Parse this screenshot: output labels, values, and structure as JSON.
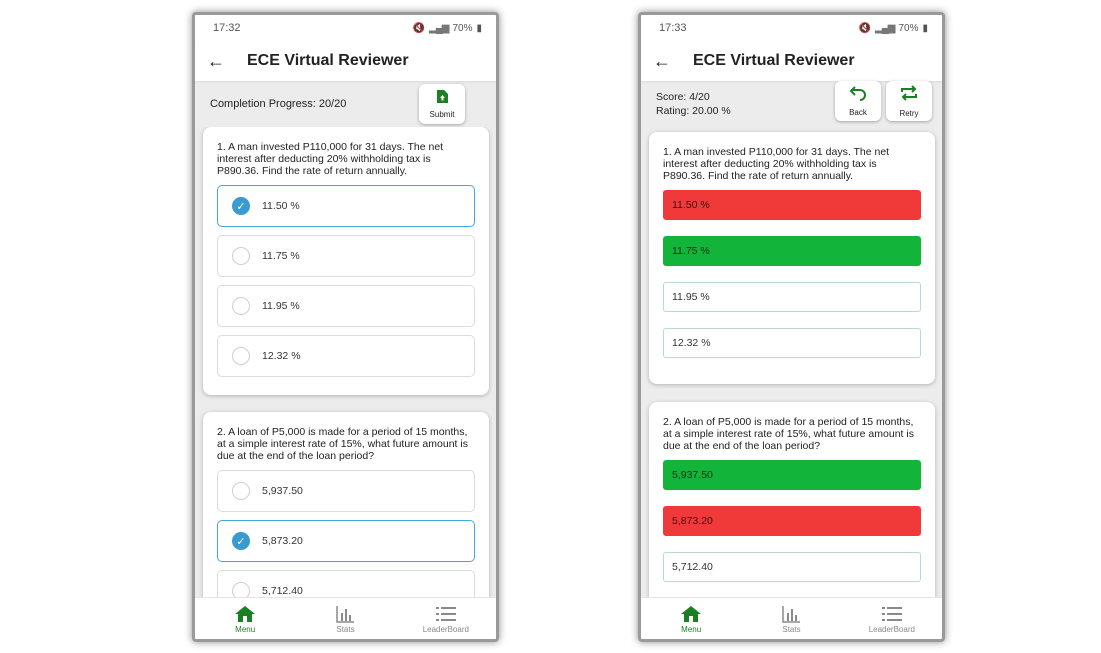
{
  "colors": {
    "accent_green": "#1b7f24",
    "wrong_red": "#f03a3a",
    "right_green": "#12b53a",
    "check_blue": "#3a9bd0"
  },
  "left": {
    "status": {
      "time": "17:32",
      "battery": "70%"
    },
    "appbar": {
      "title": "ECE Virtual Reviewer",
      "back_icon": "arrow-left-icon"
    },
    "progress_text": "Completion Progress: 20/20",
    "submit_label": "Submit",
    "questions": [
      {
        "text": "1. A man invested P110,000 for 31 days. The net interest after deducting 20% withholding tax is P890.36. Find the rate of return annually.",
        "options": [
          "11.50 %",
          "11.75 %",
          "11.95 %",
          "12.32 %"
        ],
        "selected_index": 0
      },
      {
        "text": "2. A loan of P5,000 is made for a period of 15 months, at a simple interest rate of 15%, what future amount is due at the end of the loan period?",
        "options": [
          "5,937.50",
          "5,873.20",
          "5,712.40"
        ],
        "selected_index": 1
      }
    ]
  },
  "right": {
    "status": {
      "time": "17:33",
      "battery": "70%"
    },
    "appbar": {
      "title": "ECE Virtual Reviewer",
      "back_icon": "arrow-left-icon"
    },
    "score_text": "Score: 4/20",
    "rating_text": "Rating: 20.00 %",
    "back_label": "Back",
    "retry_label": "Retry",
    "questions": [
      {
        "text": "1. A man invested P110,000 for 31 days. The net interest after deducting 20% withholding tax is P890.36. Find the rate of return annually.",
        "options": [
          "11.50 %",
          "11.75 %",
          "11.95 %",
          "12.32 %"
        ],
        "states": [
          "wrong",
          "correct",
          "none",
          "none"
        ]
      },
      {
        "text": "2. A loan of P5,000 is made for a period of 15 months, at a simple interest rate of 15%, what future amount is due at the end of the loan period?",
        "options": [
          "5,937.50",
          "5,873.20",
          "5,712.40"
        ],
        "states": [
          "correct",
          "wrong",
          "none"
        ]
      }
    ]
  },
  "nav": {
    "items": [
      "Menu",
      "Stats",
      "LeaderBoard"
    ],
    "active_index": 0
  }
}
